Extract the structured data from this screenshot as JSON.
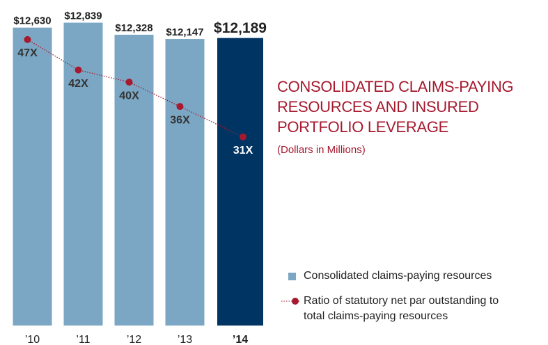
{
  "chart_data": {
    "type": "bar",
    "title": "CONSOLIDATED CLAIMS-PAYING RESOURCES AND INSURED PORTFOLIO LEVERAGE",
    "subtitle": "(Dollars in Millions)",
    "categories": [
      "’10",
      "’11",
      "’12",
      "’13",
      "’14"
    ],
    "ylim": [
      0,
      13800
    ],
    "y2lim": [
      0,
      53.5
    ],
    "series": [
      {
        "name": "Consolidated claims-paying resources",
        "type": "bar",
        "color": "#7ba7c4",
        "colors": [
          "#7ba7c4",
          "#7ba7c4",
          "#7ba7c4",
          "#7ba7c4",
          "#003462"
        ],
        "values": [
          12630,
          12839,
          12328,
          12147,
          12189
        ],
        "value_labels": [
          "$12,630",
          "$12,839",
          "$12,328",
          "$12,147",
          "$12,189"
        ]
      },
      {
        "name": "Ratio of statutory net par outstanding to total claims-paying resources",
        "type": "line",
        "axis": "y2",
        "color": "#a6192e",
        "values": [
          47,
          42,
          40,
          36,
          31
        ],
        "value_labels": [
          "47X",
          "42X",
          "40X",
          "36X",
          "31X"
        ]
      }
    ]
  }
}
